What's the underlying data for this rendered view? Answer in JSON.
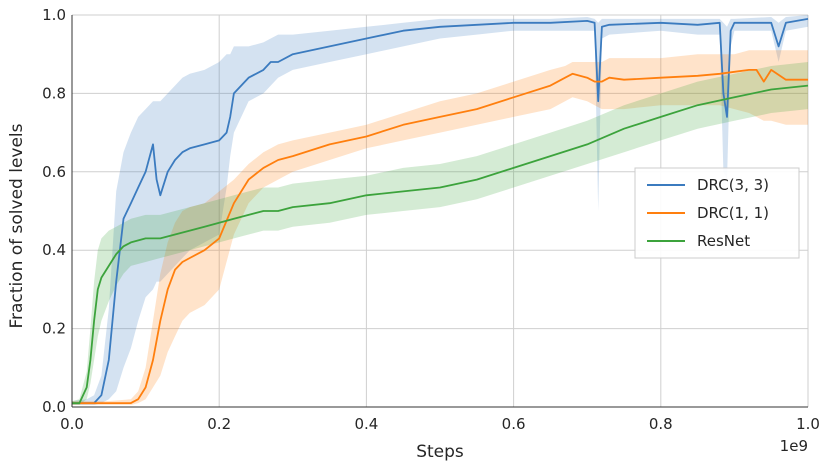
{
  "chart_data": {
    "type": "line",
    "xlabel": "Steps",
    "ylabel": "Fraction of solved levels",
    "x_offset_label": "1e9",
    "xlim": [
      0,
      1.0
    ],
    "ylim": [
      0,
      1.0
    ],
    "xticks": [
      "0.0",
      "0.2",
      "0.4",
      "0.6",
      "0.8",
      "1.0"
    ],
    "yticks": [
      "0.0",
      "0.2",
      "0.4",
      "0.6",
      "0.8",
      "1.0"
    ],
    "grid": true,
    "legend_position": "center-right",
    "series": [
      {
        "name": "DRC(3, 3)",
        "color": "#3b7bbf",
        "x": [
          0.0,
          0.02,
          0.03,
          0.04,
          0.05,
          0.06,
          0.07,
          0.08,
          0.09,
          0.1,
          0.11,
          0.115,
          0.12,
          0.13,
          0.14,
          0.15,
          0.16,
          0.18,
          0.2,
          0.21,
          0.215,
          0.22,
          0.24,
          0.26,
          0.27,
          0.28,
          0.3,
          0.35,
          0.4,
          0.45,
          0.5,
          0.55,
          0.6,
          0.65,
          0.7,
          0.71,
          0.715,
          0.72,
          0.73,
          0.8,
          0.85,
          0.88,
          0.885,
          0.89,
          0.895,
          0.9,
          0.95,
          0.96,
          0.97,
          1.0
        ],
        "y": [
          0.01,
          0.01,
          0.01,
          0.03,
          0.12,
          0.32,
          0.48,
          0.52,
          0.56,
          0.6,
          0.67,
          0.58,
          0.54,
          0.6,
          0.63,
          0.65,
          0.66,
          0.67,
          0.68,
          0.7,
          0.74,
          0.8,
          0.84,
          0.86,
          0.88,
          0.88,
          0.9,
          0.92,
          0.94,
          0.96,
          0.97,
          0.975,
          0.98,
          0.98,
          0.985,
          0.98,
          0.78,
          0.97,
          0.975,
          0.98,
          0.975,
          0.98,
          0.8,
          0.74,
          0.96,
          0.98,
          0.98,
          0.92,
          0.98,
          0.99
        ],
        "y_low": [
          0.005,
          0.005,
          0.005,
          0.01,
          0.02,
          0.04,
          0.1,
          0.15,
          0.22,
          0.28,
          0.3,
          0.32,
          0.32,
          0.34,
          0.36,
          0.38,
          0.4,
          0.42,
          0.44,
          0.56,
          0.64,
          0.7,
          0.78,
          0.8,
          0.82,
          0.84,
          0.86,
          0.88,
          0.9,
          0.92,
          0.94,
          0.95,
          0.96,
          0.96,
          0.96,
          0.96,
          0.5,
          0.94,
          0.95,
          0.96,
          0.95,
          0.95,
          0.6,
          0.58,
          0.92,
          0.96,
          0.96,
          0.88,
          0.96,
          0.97
        ],
        "y_high": [
          0.015,
          0.02,
          0.03,
          0.08,
          0.25,
          0.55,
          0.65,
          0.7,
          0.74,
          0.76,
          0.78,
          0.78,
          0.78,
          0.8,
          0.82,
          0.84,
          0.85,
          0.86,
          0.88,
          0.9,
          0.9,
          0.92,
          0.92,
          0.93,
          0.94,
          0.95,
          0.95,
          0.96,
          0.97,
          0.98,
          0.99,
          0.99,
          0.99,
          0.99,
          0.995,
          0.99,
          0.98,
          0.99,
          0.99,
          0.99,
          0.99,
          0.99,
          0.98,
          0.97,
          0.99,
          0.99,
          0.995,
          0.98,
          0.995,
          1.0
        ]
      },
      {
        "name": "DRC(1, 1)",
        "color": "#ff7f0e",
        "x": [
          0.0,
          0.05,
          0.08,
          0.09,
          0.1,
          0.11,
          0.12,
          0.13,
          0.14,
          0.15,
          0.16,
          0.18,
          0.2,
          0.22,
          0.24,
          0.26,
          0.28,
          0.3,
          0.35,
          0.4,
          0.45,
          0.5,
          0.55,
          0.6,
          0.65,
          0.67,
          0.68,
          0.7,
          0.71,
          0.72,
          0.73,
          0.75,
          0.8,
          0.85,
          0.88,
          0.9,
          0.92,
          0.93,
          0.94,
          0.95,
          0.97,
          1.0
        ],
        "y": [
          0.01,
          0.01,
          0.01,
          0.02,
          0.05,
          0.12,
          0.22,
          0.3,
          0.35,
          0.37,
          0.38,
          0.4,
          0.43,
          0.52,
          0.58,
          0.61,
          0.63,
          0.64,
          0.67,
          0.69,
          0.72,
          0.74,
          0.76,
          0.79,
          0.82,
          0.84,
          0.85,
          0.84,
          0.83,
          0.83,
          0.84,
          0.835,
          0.84,
          0.845,
          0.85,
          0.855,
          0.86,
          0.86,
          0.83,
          0.86,
          0.835,
          0.835
        ],
        "y_low": [
          0.005,
          0.005,
          0.005,
          0.01,
          0.02,
          0.05,
          0.08,
          0.14,
          0.18,
          0.22,
          0.24,
          0.26,
          0.3,
          0.44,
          0.52,
          0.56,
          0.58,
          0.6,
          0.63,
          0.66,
          0.68,
          0.7,
          0.72,
          0.74,
          0.76,
          0.78,
          0.79,
          0.78,
          0.77,
          0.76,
          0.76,
          0.76,
          0.77,
          0.77,
          0.77,
          0.76,
          0.75,
          0.74,
          0.73,
          0.73,
          0.72,
          0.72
        ],
        "y_high": [
          0.015,
          0.015,
          0.02,
          0.04,
          0.1,
          0.22,
          0.34,
          0.42,
          0.47,
          0.5,
          0.51,
          0.52,
          0.55,
          0.58,
          0.62,
          0.65,
          0.67,
          0.68,
          0.7,
          0.72,
          0.75,
          0.78,
          0.8,
          0.83,
          0.86,
          0.87,
          0.88,
          0.88,
          0.88,
          0.88,
          0.89,
          0.89,
          0.89,
          0.9,
          0.9,
          0.9,
          0.91,
          0.91,
          0.91,
          0.91,
          0.91,
          0.91
        ]
      },
      {
        "name": "ResNet",
        "color": "#3ca33c",
        "x": [
          0.0,
          0.01,
          0.02,
          0.025,
          0.03,
          0.035,
          0.04,
          0.05,
          0.06,
          0.07,
          0.08,
          0.1,
          0.12,
          0.14,
          0.16,
          0.18,
          0.2,
          0.22,
          0.24,
          0.26,
          0.28,
          0.3,
          0.35,
          0.4,
          0.45,
          0.5,
          0.55,
          0.6,
          0.65,
          0.7,
          0.75,
          0.8,
          0.85,
          0.9,
          0.95,
          1.0
        ],
        "y": [
          0.01,
          0.01,
          0.05,
          0.12,
          0.22,
          0.3,
          0.33,
          0.36,
          0.39,
          0.41,
          0.42,
          0.43,
          0.43,
          0.44,
          0.45,
          0.46,
          0.47,
          0.48,
          0.49,
          0.5,
          0.5,
          0.51,
          0.52,
          0.54,
          0.55,
          0.56,
          0.58,
          0.61,
          0.64,
          0.67,
          0.71,
          0.74,
          0.77,
          0.79,
          0.81,
          0.82
        ],
        "y_low": [
          0.005,
          0.005,
          0.02,
          0.06,
          0.12,
          0.18,
          0.22,
          0.27,
          0.31,
          0.34,
          0.36,
          0.37,
          0.38,
          0.39,
          0.4,
          0.41,
          0.42,
          0.43,
          0.44,
          0.45,
          0.45,
          0.46,
          0.47,
          0.49,
          0.5,
          0.51,
          0.53,
          0.56,
          0.59,
          0.62,
          0.65,
          0.68,
          0.71,
          0.73,
          0.75,
          0.76
        ],
        "y_high": [
          0.015,
          0.02,
          0.09,
          0.2,
          0.32,
          0.4,
          0.43,
          0.45,
          0.46,
          0.47,
          0.48,
          0.49,
          0.49,
          0.5,
          0.51,
          0.52,
          0.53,
          0.54,
          0.55,
          0.56,
          0.56,
          0.57,
          0.58,
          0.59,
          0.61,
          0.62,
          0.64,
          0.67,
          0.7,
          0.73,
          0.77,
          0.8,
          0.83,
          0.85,
          0.87,
          0.88
        ]
      }
    ]
  }
}
